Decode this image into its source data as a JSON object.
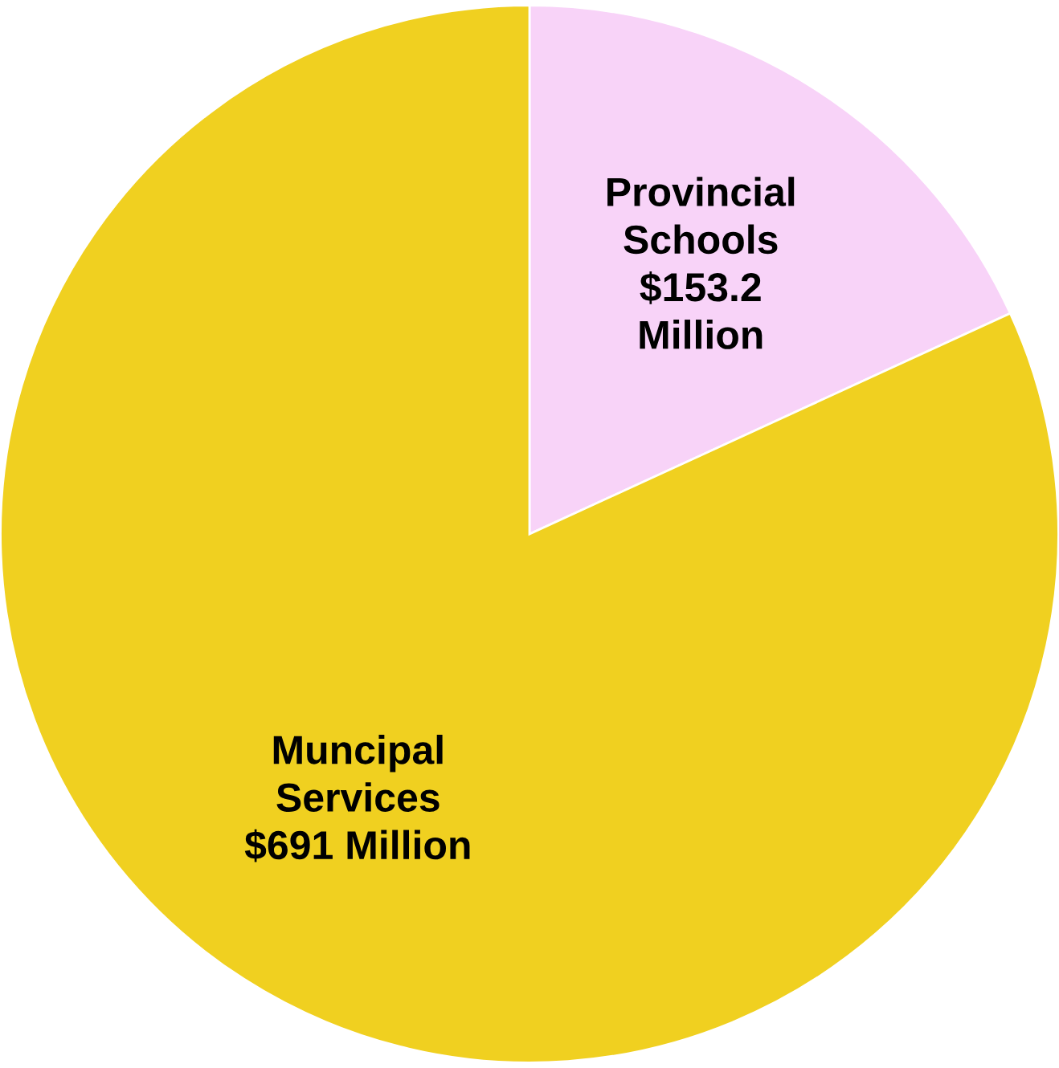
{
  "chart_data": {
    "type": "pie",
    "categories": [
      "Provincial\nSchools",
      "Muncipal\nServices"
    ],
    "values": [
      153.2,
      691
    ],
    "value_labels": [
      "$153.2\nMillion",
      "$691 Million"
    ],
    "colors": [
      "#f8d3f8",
      "#f0d020"
    ]
  }
}
